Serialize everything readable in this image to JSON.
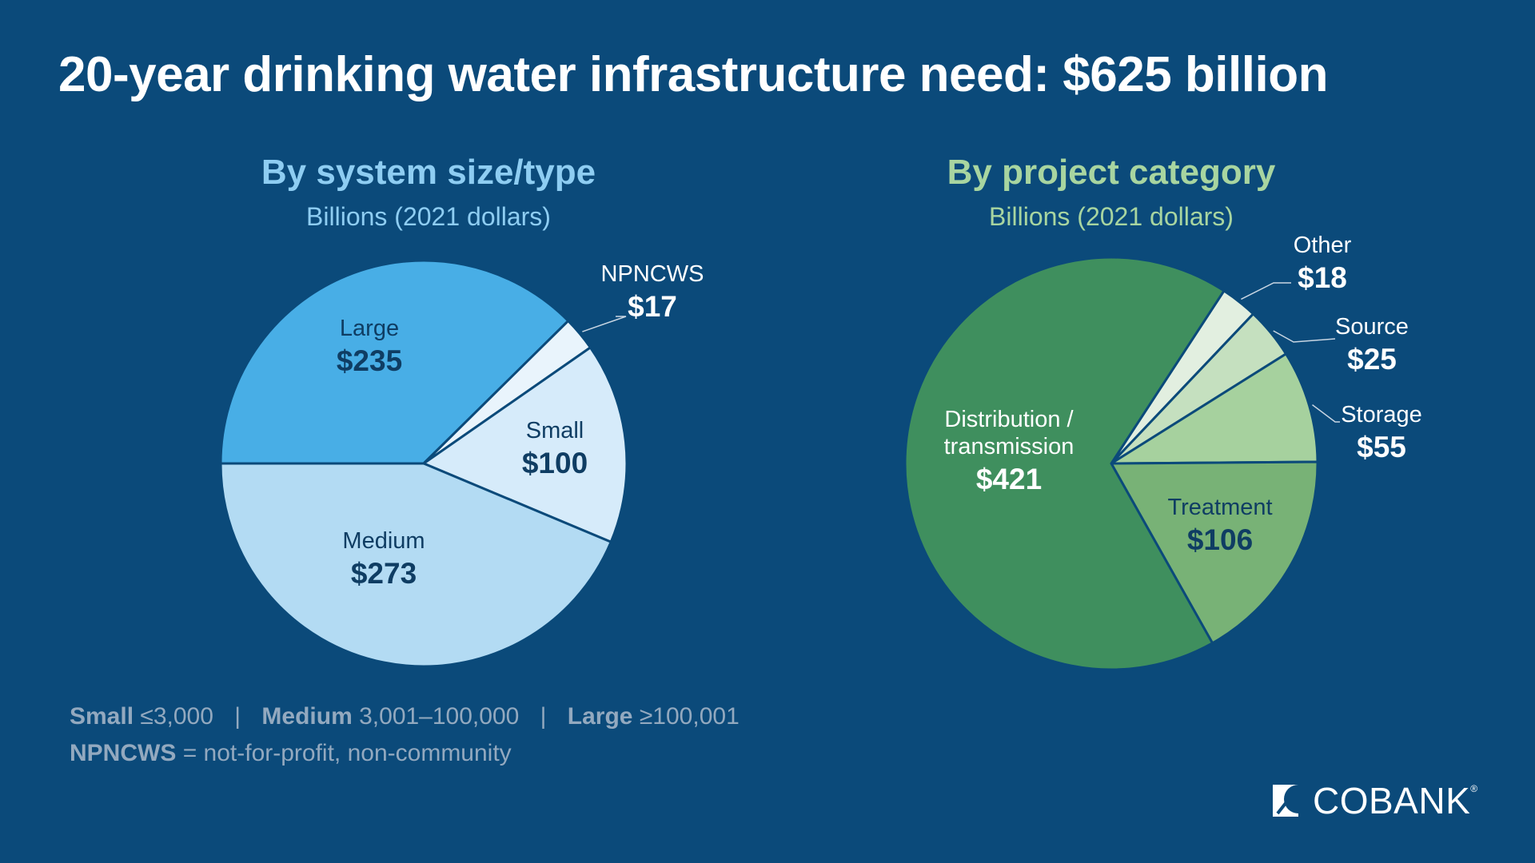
{
  "title": "20-year drinking water infrastructure need: $625 billion",
  "chart_data": [
    {
      "type": "pie",
      "title": "By system size/type",
      "subtitle": "Billions (2021 dollars)",
      "categories": [
        "Large",
        "NPNCWS",
        "Small",
        "Medium"
      ],
      "values": [
        235,
        17,
        100,
        273
      ],
      "value_labels": [
        "$235",
        "$17",
        "$100",
        "$273"
      ],
      "colors": [
        "#48aee6",
        "#e9f4fc",
        "#d6ebfa",
        "#b3dbf3"
      ]
    },
    {
      "type": "pie",
      "title": "By project category",
      "subtitle": "Billions (2021 dollars)",
      "categories": [
        "Other",
        "Source",
        "Storage",
        "Treatment",
        "Distribution / transmission"
      ],
      "values": [
        18,
        25,
        55,
        106,
        421
      ],
      "value_labels": [
        "$18",
        "$25",
        "$55",
        "$106",
        "$421"
      ],
      "colors": [
        "#e2efe0",
        "#c5e0bf",
        "#a6d19e",
        "#78b276",
        "#3f8f5e"
      ]
    }
  ],
  "footnote": {
    "small_label": "Small",
    "small_value": "≤3,000",
    "medium_label": "Medium",
    "medium_value": "3,001–100,000",
    "large_label": "Large",
    "large_value": "≥100,001",
    "separator": "|",
    "npncws_label": "NPNCWS",
    "npncws_value": "= not-for-profit, non-community"
  },
  "logo": {
    "text": "COBANK",
    "registered": "®"
  },
  "colors": {
    "background": "#0b4a7a",
    "left_title": "#8ecdf2",
    "right_title": "#a8d5a0",
    "slice_border": "#0b4a7a",
    "footnote": "#93a9bf"
  },
  "icons": {
    "logo_mark": "cobank-logo-icon"
  }
}
